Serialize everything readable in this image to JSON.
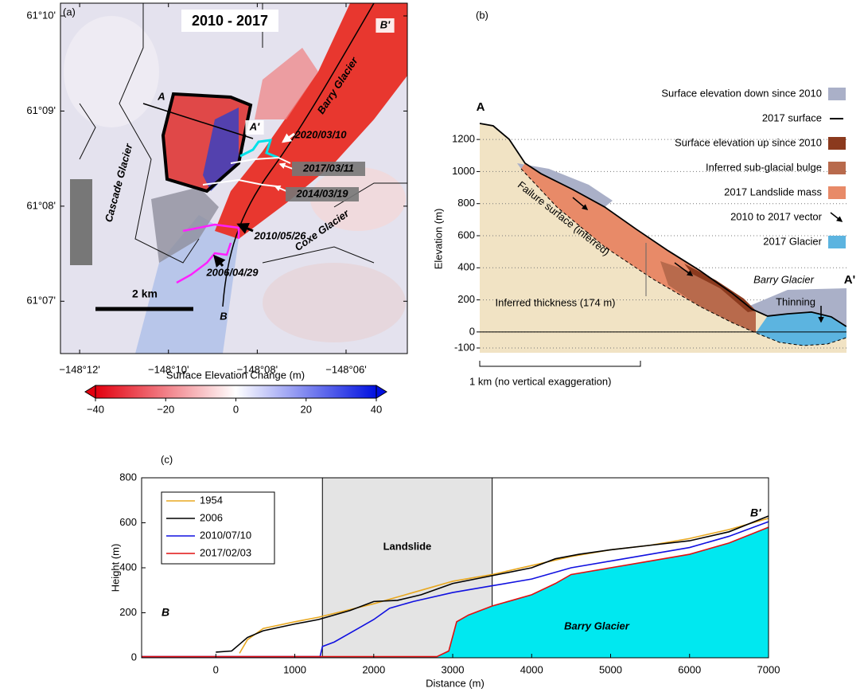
{
  "chart_data": [
    {
      "type": "map",
      "panel_label": "(a)",
      "title": "2010 - 2017",
      "xlim": [
        -148.2072,
        -148.077
      ],
      "ylim": [
        61.1075,
        61.1689
      ],
      "xticks": [
        {
          "value": -148.2,
          "label": "−148°12'"
        },
        {
          "value": -148.16667,
          "label": "−148°10'"
        },
        {
          "value": -148.13333,
          "label": "−148°08'"
        },
        {
          "value": -148.1,
          "label": "−148°06'"
        }
      ],
      "yticks": [
        {
          "value": 61.11667,
          "label": "61°07'"
        },
        {
          "value": 61.13333,
          "label": "61°08'"
        },
        {
          "value": 61.15,
          "label": "61°09'"
        },
        {
          "value": 61.16667,
          "label": "61°10'"
        }
      ],
      "annotations": [
        {
          "text": "B'",
          "color": "#000000"
        },
        {
          "text": "Barry Glacier",
          "color": "#ffffff"
        },
        {
          "text": "A",
          "color": "#000000"
        },
        {
          "text": "A'",
          "color": "#000000"
        },
        {
          "text": "2020/03/10",
          "color": "#00e0e8"
        },
        {
          "text": "2017/03/11",
          "color": "#ffffff"
        },
        {
          "text": "2014/03/19",
          "color": "#ffffff"
        },
        {
          "text": "2010/05/26",
          "color": "#ff20ff"
        },
        {
          "text": "2006/04/29",
          "color": "#ff20ff"
        },
        {
          "text": "Cascade Glacier",
          "color": "#000000"
        },
        {
          "text": "Coxe Glacier",
          "color": "#000000"
        },
        {
          "text": "B",
          "color": "#000000"
        }
      ],
      "scale_bar": "2 km",
      "colorbar": {
        "title": "Surface Elevation Change (m)",
        "lim": [
          -40,
          40
        ],
        "ticks": [
          {
            "value": -40,
            "label": "−40"
          },
          {
            "value": -20,
            "label": "−20"
          },
          0,
          20,
          40
        ],
        "colors": [
          "#e3000f",
          "#ffffff",
          "#0010e0"
        ]
      }
    },
    {
      "type": "profile",
      "panel_label": "(b)",
      "ylabel": "Elevation (m)",
      "ylim": [
        -100,
        1300
      ],
      "xlim": [
        0,
        2290
      ],
      "yticks": [
        -100,
        0,
        200,
        400,
        600,
        800,
        1000,
        1200
      ],
      "grid": true,
      "section_start": "A",
      "section_end": "A'",
      "surface": {
        "x": [
          0,
          84,
          184,
          283,
          382,
          581,
          780,
          978,
          1177,
          1375,
          1574,
          1698,
          1797,
          1922,
          2071,
          2195,
          2289
        ],
        "values": [
          1300,
          1285,
          1201,
          1052,
          987,
          888,
          779,
          640,
          506,
          382,
          243,
          143,
          99,
          113,
          124,
          94,
          34
        ]
      },
      "legend": [
        {
          "label": "Surface elevation down since 2010",
          "color": "#aab0c8",
          "marker": "rect"
        },
        {
          "label": "2017 surface",
          "color": "#000000",
          "marker": "line"
        },
        {
          "label": "Surface elevation up since 2010",
          "color": "#8b3a1e",
          "marker": "rect"
        },
        {
          "label": "Inferred sub-glacial bulge",
          "color": "#b86a4c",
          "marker": "rect"
        },
        {
          "label": "2017 Landslide mass",
          "color": "#e88a68",
          "marker": "rect"
        },
        {
          "label": "2010 to 2017 vector",
          "color": "#000000",
          "marker": "arrow"
        },
        {
          "label": "2017 Glacier",
          "color": "#5cb4e0",
          "marker": "rect"
        }
      ],
      "background_color": "#f1e3c4",
      "annotations": [
        "Failure surface (inferred)",
        "Inferred thickness (174 m)",
        "Barry Glacier",
        "Thinning"
      ],
      "scale_bar": "1 km (no vertical exaggeration)"
    },
    {
      "type": "line",
      "panel_label": "(c)",
      "xlabel": "Distance (m)",
      "ylabel": "Height (m)",
      "xlim": [
        -940,
        7000
      ],
      "ylim": [
        0,
        800
      ],
      "xticks": [
        0,
        1000,
        2000,
        3000,
        4000,
        5000,
        6000,
        7000
      ],
      "yticks": [
        0,
        200,
        400,
        600,
        800
      ],
      "legend_position": "upper left",
      "shaded_region": {
        "label": "Landslide",
        "x": [
          1350,
          3500
        ],
        "color": "#e4e4e4"
      },
      "fill_label": "Barry Glacier",
      "end_labels": [
        "B",
        "B'"
      ],
      "series": [
        {
          "name": "1954",
          "color": "#e8a820",
          "x": [
            300,
            400,
            600,
            1000,
            1300,
            2000,
            2500,
            3000,
            3500,
            4000,
            4500,
            5000,
            5500,
            6000,
            6500,
            7000
          ],
          "values": [
            20,
            80,
            130,
            160,
            180,
            240,
            290,
            340,
            370,
            410,
            450,
            480,
            500,
            530,
            570,
            620
          ]
        },
        {
          "name": "2006",
          "color": "#000000",
          "x": [
            0,
            200,
            300,
            400,
            600,
            1000,
            1300,
            1700,
            2000,
            2300,
            2600,
            3000,
            3500,
            4000,
            4300,
            4600,
            5000,
            5500,
            6000,
            6500,
            7000
          ],
          "values": [
            25,
            30,
            60,
            90,
            120,
            150,
            170,
            210,
            250,
            255,
            280,
            330,
            365,
            400,
            440,
            460,
            480,
            500,
            520,
            560,
            630
          ]
        },
        {
          "name": "2010/07/10",
          "color": "#1010e0",
          "x": [
            -940,
            1320,
            1350,
            1500,
            1800,
            2000,
            2200,
            2500,
            3000,
            3500,
            4000,
            4500,
            5000,
            5500,
            6000,
            6500,
            7000
          ],
          "values": [
            5,
            5,
            50,
            70,
            130,
            170,
            220,
            250,
            290,
            320,
            350,
            400,
            430,
            460,
            490,
            540,
            605
          ]
        },
        {
          "name": "2017/02/03",
          "color": "#e01010",
          "fill": "#00e8f0",
          "x": [
            -940,
            2800,
            2950,
            3050,
            3200,
            3500,
            3800,
            4000,
            4300,
            4500,
            5000,
            5500,
            6000,
            6500,
            7000
          ],
          "values": [
            5,
            5,
            30,
            160,
            190,
            230,
            260,
            280,
            330,
            370,
            400,
            430,
            460,
            510,
            580
          ]
        }
      ]
    }
  ]
}
